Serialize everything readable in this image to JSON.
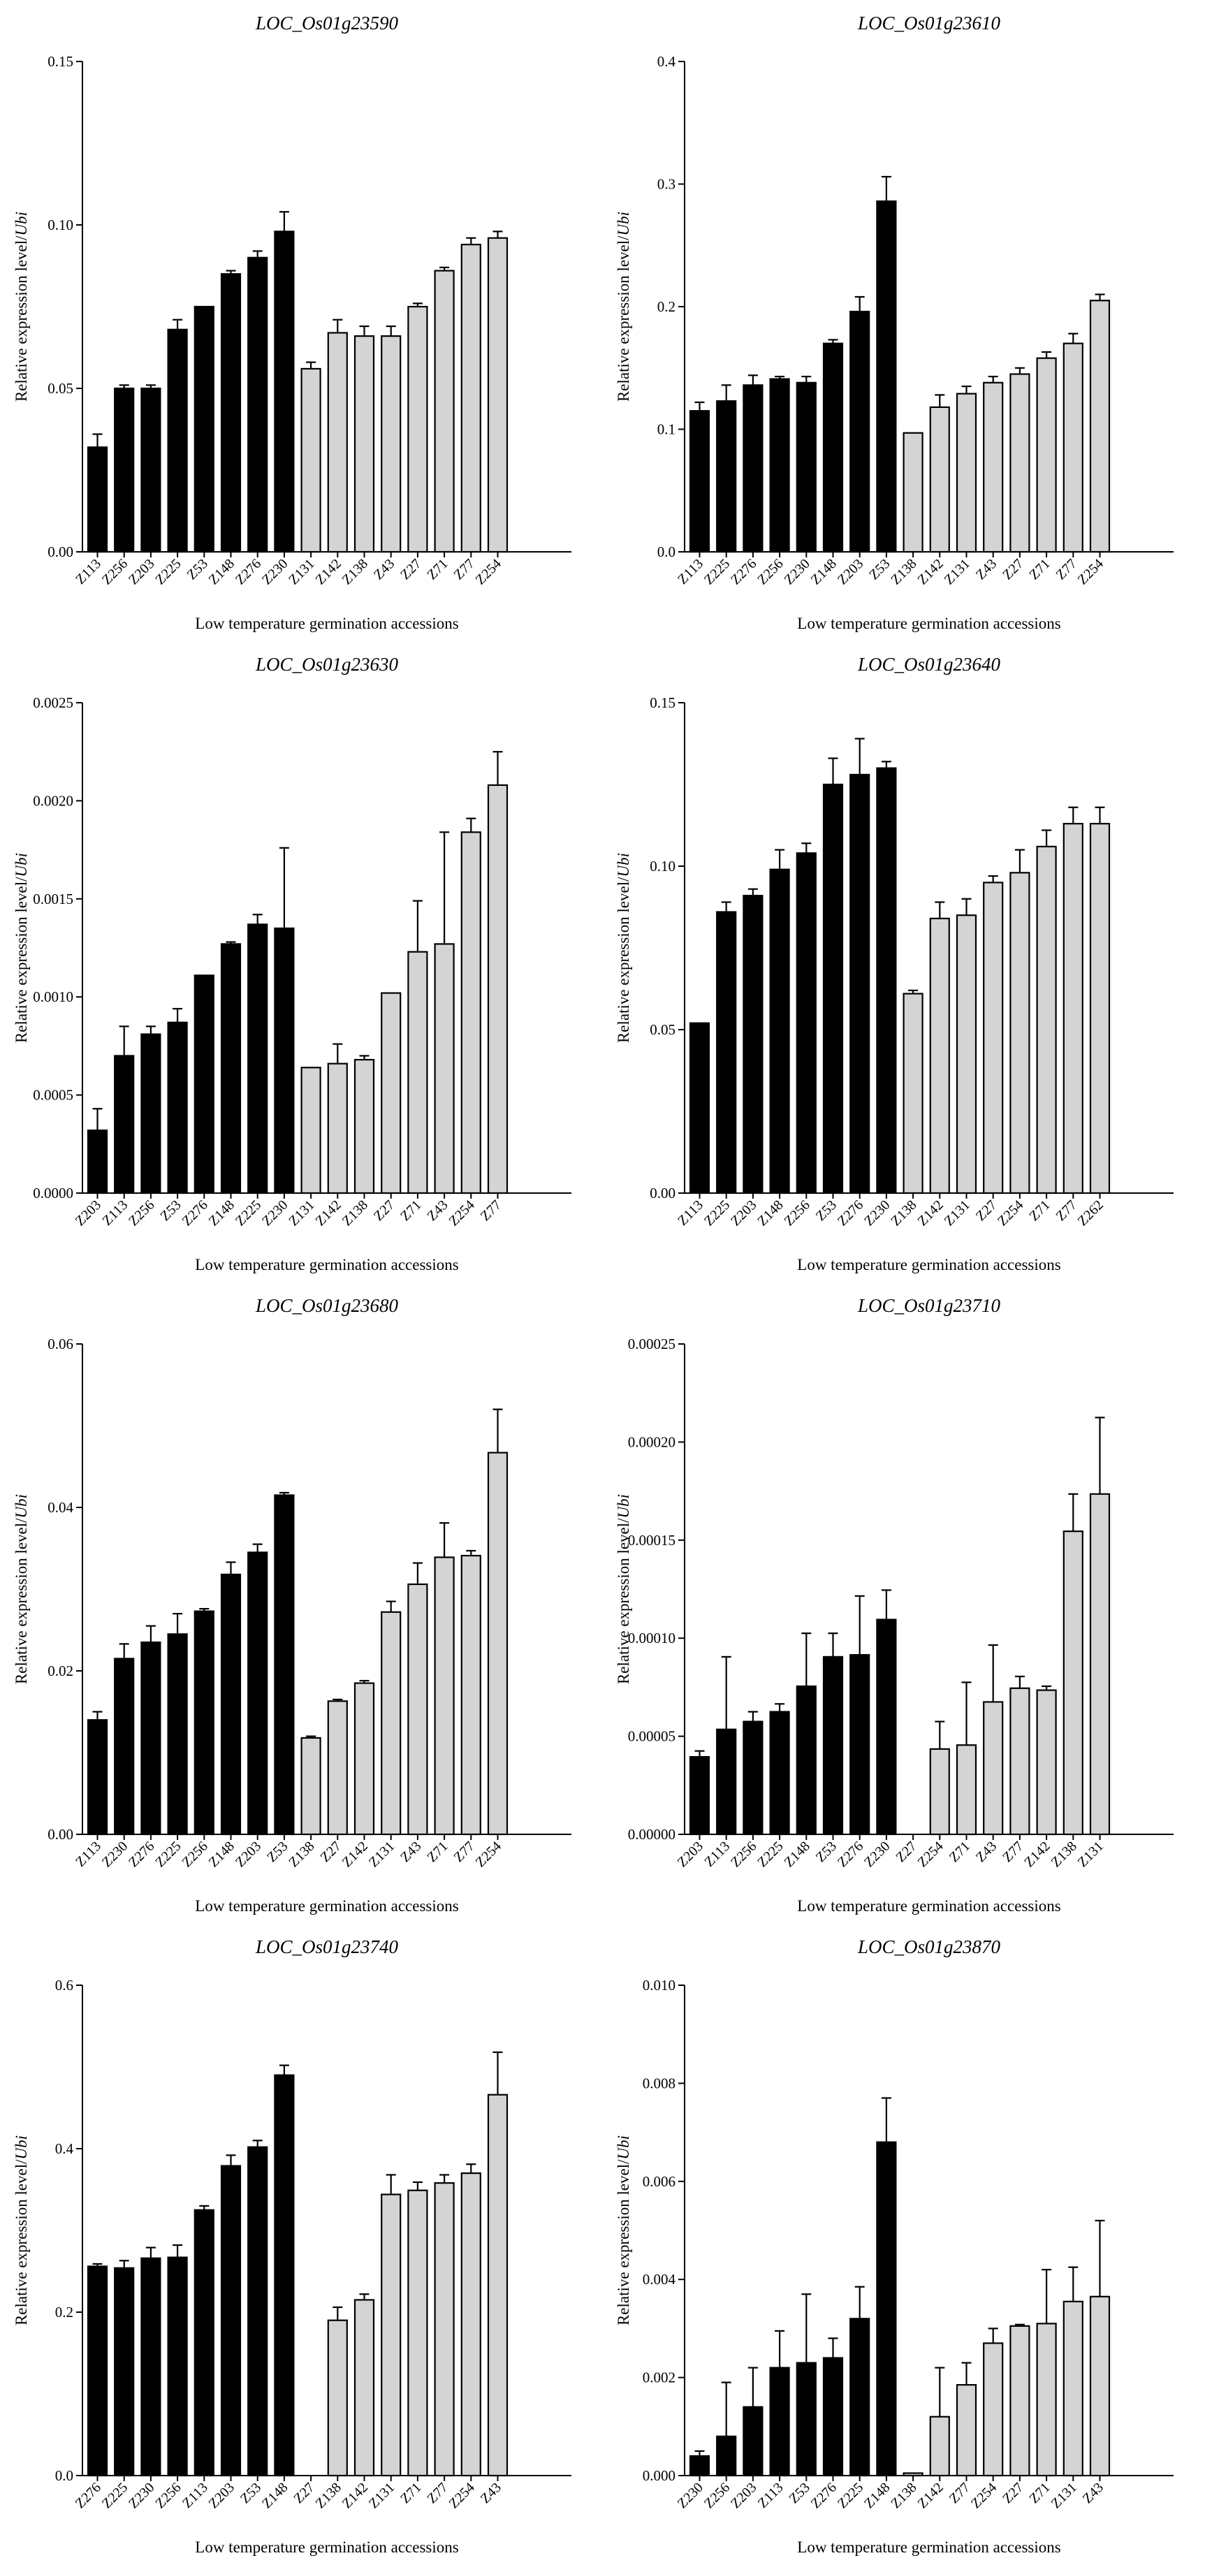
{
  "chart_data": [
    {
      "type": "bar",
      "title": "LOC_Os01g23590",
      "ylabel_main": "Relative expression level/",
      "ylabel_italic": "Ubi",
      "xlabel": "Low temperature germination accessions",
      "ylim": [
        0,
        0.15
      ],
      "yticks": [
        "0.00",
        "0.05",
        "0.10",
        "0.15"
      ],
      "categories": [
        "Z113",
        "Z256",
        "Z203",
        "Z225",
        "Z53",
        "Z148",
        "Z276",
        "Z230",
        "Z131",
        "Z142",
        "Z138",
        "Z43",
        "Z27",
        "Z71",
        "Z77",
        "Z254"
      ],
      "values": [
        0.032,
        0.05,
        0.05,
        0.068,
        0.075,
        0.085,
        0.09,
        0.098,
        0.056,
        0.067,
        0.066,
        0.066,
        0.075,
        0.086,
        0.094,
        0.096
      ],
      "errors": [
        0.004,
        0.001,
        0.001,
        0.003,
        0.0,
        0.001,
        0.002,
        0.006,
        0.002,
        0.004,
        0.003,
        0.003,
        0.001,
        0.001,
        0.002,
        0.002
      ],
      "groups": [
        "black",
        "black",
        "black",
        "black",
        "black",
        "black",
        "black",
        "black",
        "grey",
        "grey",
        "grey",
        "grey",
        "grey",
        "grey",
        "grey",
        "grey"
      ],
      "colors": {
        "black": "#000000",
        "grey": "#d4d4d4"
      }
    },
    {
      "type": "bar",
      "title": "LOC_Os01g23610",
      "ylabel_main": "Relative expression level/",
      "ylabel_italic": "Ubi",
      "xlabel": "Low temperature germination accessions",
      "ylim": [
        0,
        0.4
      ],
      "yticks": [
        "0.0",
        "0.1",
        "0.2",
        "0.3",
        "0.4"
      ],
      "categories": [
        "Z113",
        "Z225",
        "Z276",
        "Z256",
        "Z230",
        "Z148",
        "Z203",
        "Z53",
        "Z138",
        "Z142",
        "Z131",
        "Z43",
        "Z27",
        "Z71",
        "Z77",
        "Z254"
      ],
      "values": [
        0.115,
        0.123,
        0.136,
        0.141,
        0.138,
        0.17,
        0.196,
        0.286,
        0.097,
        0.118,
        0.129,
        0.138,
        0.145,
        0.158,
        0.17,
        0.205
      ],
      "errors": [
        0.007,
        0.013,
        0.008,
        0.002,
        0.005,
        0.003,
        0.012,
        0.02,
        0.0,
        0.01,
        0.006,
        0.005,
        0.005,
        0.005,
        0.008,
        0.005
      ],
      "groups": [
        "black",
        "black",
        "black",
        "black",
        "black",
        "black",
        "black",
        "black",
        "grey",
        "grey",
        "grey",
        "grey",
        "grey",
        "grey",
        "grey",
        "grey"
      ],
      "colors": {
        "black": "#000000",
        "grey": "#d4d4d4"
      }
    },
    {
      "type": "bar",
      "title": "LOC_Os01g23630",
      "ylabel_main": "Relative expression level/",
      "ylabel_italic": "Ubi",
      "xlabel": "Low temperature germination accessions",
      "ylim": [
        0,
        0.0025
      ],
      "yticks": [
        "0.0000",
        "0.0005",
        "0.0010",
        "0.0015",
        "0.0020",
        "0.0025"
      ],
      "categories": [
        "Z203",
        "Z113",
        "Z256",
        "Z53",
        "Z276",
        "Z148",
        "Z225",
        "Z230",
        "Z131",
        "Z142",
        "Z138",
        "Z27",
        "Z71",
        "Z43",
        "Z254",
        "Z77"
      ],
      "values": [
        0.00032,
        0.0007,
        0.00081,
        0.00087,
        0.00111,
        0.00127,
        0.00137,
        0.00135,
        0.00064,
        0.00066,
        0.00068,
        0.00102,
        0.00123,
        0.00127,
        0.00184,
        0.00208
      ],
      "errors": [
        0.00011,
        0.00015,
        4e-05,
        7e-05,
        0.0,
        1e-05,
        5e-05,
        0.00041,
        0.0,
        0.0001,
        2e-05,
        0.0,
        0.00026,
        0.00057,
        7e-05,
        0.00017
      ],
      "groups": [
        "black",
        "black",
        "black",
        "black",
        "black",
        "black",
        "black",
        "black",
        "grey",
        "grey",
        "grey",
        "grey",
        "grey",
        "grey",
        "grey",
        "grey"
      ],
      "colors": {
        "black": "#000000",
        "grey": "#d4d4d4"
      }
    },
    {
      "type": "bar",
      "title": "LOC_Os01g23640",
      "ylabel_main": "Relative expression level/",
      "ylabel_italic": "Ubi",
      "xlabel": "Low temperature germination accessions",
      "ylim": [
        0,
        0.15
      ],
      "yticks": [
        "0.00",
        "0.05",
        "0.10",
        "0.15"
      ],
      "categories": [
        "Z113",
        "Z225",
        "Z203",
        "Z148",
        "Z256",
        "Z53",
        "Z276",
        "Z230",
        "Z138",
        "Z142",
        "Z131",
        "Z27",
        "Z254",
        "Z71",
        "Z77",
        "Z262"
      ],
      "values": [
        0.052,
        0.086,
        0.091,
        0.099,
        0.104,
        0.125,
        0.128,
        0.13,
        0.061,
        0.084,
        0.085,
        0.095,
        0.098,
        0.106,
        0.113,
        0.113
      ],
      "errors": [
        0.0,
        0.003,
        0.002,
        0.006,
        0.003,
        0.008,
        0.011,
        0.002,
        0.001,
        0.005,
        0.005,
        0.002,
        0.007,
        0.005,
        0.005,
        0.005
      ],
      "groups": [
        "black",
        "black",
        "black",
        "black",
        "black",
        "black",
        "black",
        "black",
        "grey",
        "grey",
        "grey",
        "grey",
        "grey",
        "grey",
        "grey",
        "grey"
      ],
      "colors": {
        "black": "#000000",
        "grey": "#d4d4d4"
      }
    },
    {
      "type": "bar",
      "title": "LOC_Os01g23680",
      "ylabel_main": "Relative expression level/",
      "ylabel_italic": "Ubi",
      "xlabel": "Low temperature germination accessions",
      "ylim": [
        0,
        0.06
      ],
      "yticks": [
        "0.00",
        "0.02",
        "0.04",
        "0.06"
      ],
      "categories": [
        "Z113",
        "Z230",
        "Z276",
        "Z225",
        "Z256",
        "Z148",
        "Z203",
        "Z53",
        "Z138",
        "Z27",
        "Z142",
        "Z131",
        "Z43",
        "Z71",
        "Z77",
        "Z254"
      ],
      "values": [
        0.014,
        0.0215,
        0.0235,
        0.0245,
        0.0273,
        0.0318,
        0.0345,
        0.0415,
        0.0118,
        0.0163,
        0.0185,
        0.0272,
        0.0306,
        0.0339,
        0.0341,
        0.0467
      ],
      "errors": [
        0.001,
        0.0018,
        0.002,
        0.0025,
        0.0003,
        0.0015,
        0.001,
        0.0003,
        0.0002,
        0.0002,
        0.0003,
        0.0013,
        0.0026,
        0.0042,
        0.0006,
        0.0053
      ],
      "groups": [
        "black",
        "black",
        "black",
        "black",
        "black",
        "black",
        "black",
        "black",
        "grey",
        "grey",
        "grey",
        "grey",
        "grey",
        "grey",
        "grey",
        "grey"
      ],
      "colors": {
        "black": "#000000",
        "grey": "#d4d4d4"
      }
    },
    {
      "type": "bar",
      "title": "LOC_Os01g23710",
      "ylabel_main": "Relative expression level/",
      "ylabel_italic": "Ubi",
      "xlabel": "Low temperature germination accessions",
      "ylim": [
        0,
        0.00025
      ],
      "yticks": [
        "0.00000",
        "0.00005",
        "0.00010",
        "0.00015",
        "0.00020",
        "0.00025"
      ],
      "categories": [
        "Z203",
        "Z113",
        "Z256",
        "Z225",
        "Z148",
        "Z53",
        "Z276",
        "Z230",
        "Z27",
        "Z254",
        "Z71",
        "Z43",
        "Z77",
        "Z142",
        "Z138",
        "Z131"
      ],
      "values": [
        3.95e-05,
        5.35e-05,
        5.75e-05,
        6.25e-05,
        7.55e-05,
        9.05e-05,
        9.15e-05,
        0.0001095,
        0.0,
        4.35e-05,
        4.55e-05,
        6.75e-05,
        7.45e-05,
        7.35e-05,
        0.0001545,
        0.0001735
      ],
      "errors": [
        3e-06,
        3.7e-05,
        5e-06,
        4e-06,
        2.7e-05,
        1.2e-05,
        3e-05,
        1.5e-05,
        0.0,
        1.4e-05,
        3.2e-05,
        2.9e-05,
        6e-06,
        2e-06,
        1.9e-05,
        3.9e-05
      ],
      "groups": [
        "black",
        "black",
        "black",
        "black",
        "black",
        "black",
        "black",
        "black",
        "grey",
        "grey",
        "grey",
        "grey",
        "grey",
        "grey",
        "grey",
        "grey"
      ],
      "colors": {
        "black": "#000000",
        "grey": "#d4d4d4"
      }
    },
    {
      "type": "bar",
      "title": "LOC_Os01g23740",
      "ylabel_main": "Relative expression level/",
      "ylabel_italic": "Ubi",
      "xlabel": "Low temperature germination accessions",
      "ylim": [
        0,
        0.6
      ],
      "yticks": [
        "0.0",
        "0.2",
        "0.4",
        "0.6"
      ],
      "categories": [
        "Z276",
        "Z225",
        "Z230",
        "Z256",
        "Z113",
        "Z203",
        "Z53",
        "Z148",
        "Z27",
        "Z138",
        "Z142",
        "Z131",
        "Z71",
        "Z77",
        "Z254",
        "Z43"
      ],
      "values": [
        0.256,
        0.254,
        0.266,
        0.267,
        0.325,
        0.379,
        0.402,
        0.49,
        0.0,
        0.19,
        0.215,
        0.344,
        0.349,
        0.358,
        0.37,
        0.466
      ],
      "errors": [
        0.003,
        0.009,
        0.013,
        0.015,
        0.005,
        0.013,
        0.008,
        0.012,
        0.0,
        0.016,
        0.007,
        0.024,
        0.01,
        0.01,
        0.011,
        0.052
      ],
      "groups": [
        "black",
        "black",
        "black",
        "black",
        "black",
        "black",
        "black",
        "black",
        "grey",
        "grey",
        "grey",
        "grey",
        "grey",
        "grey",
        "grey",
        "grey"
      ],
      "colors": {
        "black": "#000000",
        "grey": "#d4d4d4"
      }
    },
    {
      "type": "bar",
      "title": "LOC_Os01g23870",
      "ylabel_main": "Relative expression level/",
      "ylabel_italic": "Ubi",
      "xlabel": "Low temperature germination accessions",
      "ylim": [
        0,
        0.01
      ],
      "yticks": [
        "0.000",
        "0.002",
        "0.004",
        "0.006",
        "0.008",
        "0.010"
      ],
      "categories": [
        "Z230",
        "Z256",
        "Z203",
        "Z113",
        "Z53",
        "Z276",
        "Z225",
        "Z148",
        "Z138",
        "Z142",
        "Z77",
        "Z254",
        "Z27",
        "Z71",
        "Z131",
        "Z43"
      ],
      "values": [
        0.0004,
        0.0008,
        0.0014,
        0.0022,
        0.0023,
        0.0024,
        0.0032,
        0.0068,
        5e-05,
        0.0012,
        0.00185,
        0.0027,
        0.00305,
        0.0031,
        0.00355,
        0.00365
      ],
      "errors": [
        0.0001,
        0.0011,
        0.0008,
        0.00075,
        0.0014,
        0.0004,
        0.00065,
        0.0009,
        0.0,
        0.001,
        0.00045,
        0.0003,
        3e-05,
        0.0011,
        0.0007,
        0.00155
      ],
      "groups": [
        "black",
        "black",
        "black",
        "black",
        "black",
        "black",
        "black",
        "black",
        "grey",
        "grey",
        "grey",
        "grey",
        "grey",
        "grey",
        "grey",
        "grey"
      ],
      "colors": {
        "black": "#000000",
        "grey": "#d4d4d4"
      }
    }
  ]
}
